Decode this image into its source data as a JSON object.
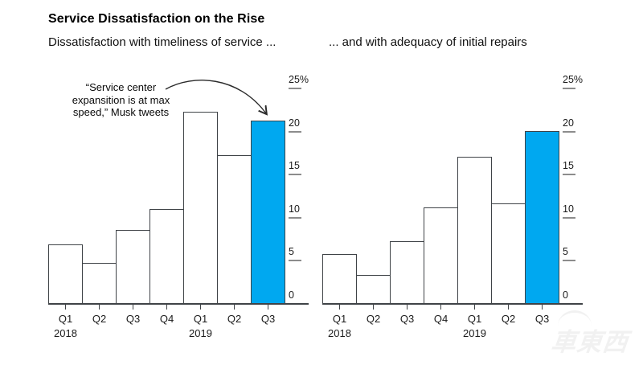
{
  "header": {
    "title": "Service Dissatisfaction on the Rise",
    "subtitle_left": "Dissatisfaction with timeliness of service ...",
    "subtitle_right": "... and with adequacy of initial repairs"
  },
  "annotation": {
    "line1": "“Service center",
    "line2": "expansition is at max",
    "line3": "speed,” Musk tweets"
  },
  "watermark": "車東西",
  "colors": {
    "highlight": "#00a8f0",
    "bar_fill": "#ffffff",
    "bar_stroke": "#3f4347",
    "axis": "#3f4347",
    "tick_dash": "#8c8c8c",
    "text": "#000000",
    "watermark": "#f1f1f1"
  },
  "chart_data": [
    {
      "type": "bar",
      "title": "Dissatisfaction with timeliness of service ...",
      "categories": [
        "Q1",
        "Q2",
        "Q3",
        "Q4",
        "Q1",
        "Q2",
        "Q3"
      ],
      "year_labels": [
        {
          "index": 0,
          "label": "2018"
        },
        {
          "index": 4,
          "label": "2019"
        }
      ],
      "values": [
        6.8,
        4.7,
        8.5,
        10.9,
        22.2,
        17.2,
        21.2
      ],
      "highlight_index": 6,
      "ylim": [
        0,
        25
      ],
      "yticks": [
        0,
        5,
        10,
        15,
        20,
        25
      ],
      "ytick_labels": [
        "0",
        "5",
        "10",
        "15",
        "20",
        "25%"
      ],
      "legend": "none",
      "grid": "off",
      "annotation": "“Service center expansition is at max speed,” Musk tweets (arrow points to highlighted Q3 2019 bar)"
    },
    {
      "type": "bar",
      "title": "... and with adequacy of initial repairs",
      "categories": [
        "Q1",
        "Q2",
        "Q3",
        "Q4",
        "Q1",
        "Q2",
        "Q3"
      ],
      "year_labels": [
        {
          "index": 0,
          "label": "2018"
        },
        {
          "index": 4,
          "label": "2019"
        }
      ],
      "values": [
        5.7,
        3.3,
        7.2,
        11.1,
        17.0,
        11.6,
        20.0
      ],
      "highlight_index": 6,
      "ylim": [
        0,
        25
      ],
      "yticks": [
        0,
        5,
        10,
        15,
        20,
        25
      ],
      "ytick_labels": [
        "0",
        "5",
        "10",
        "15",
        "20",
        "25%"
      ],
      "legend": "none",
      "grid": "off"
    }
  ]
}
